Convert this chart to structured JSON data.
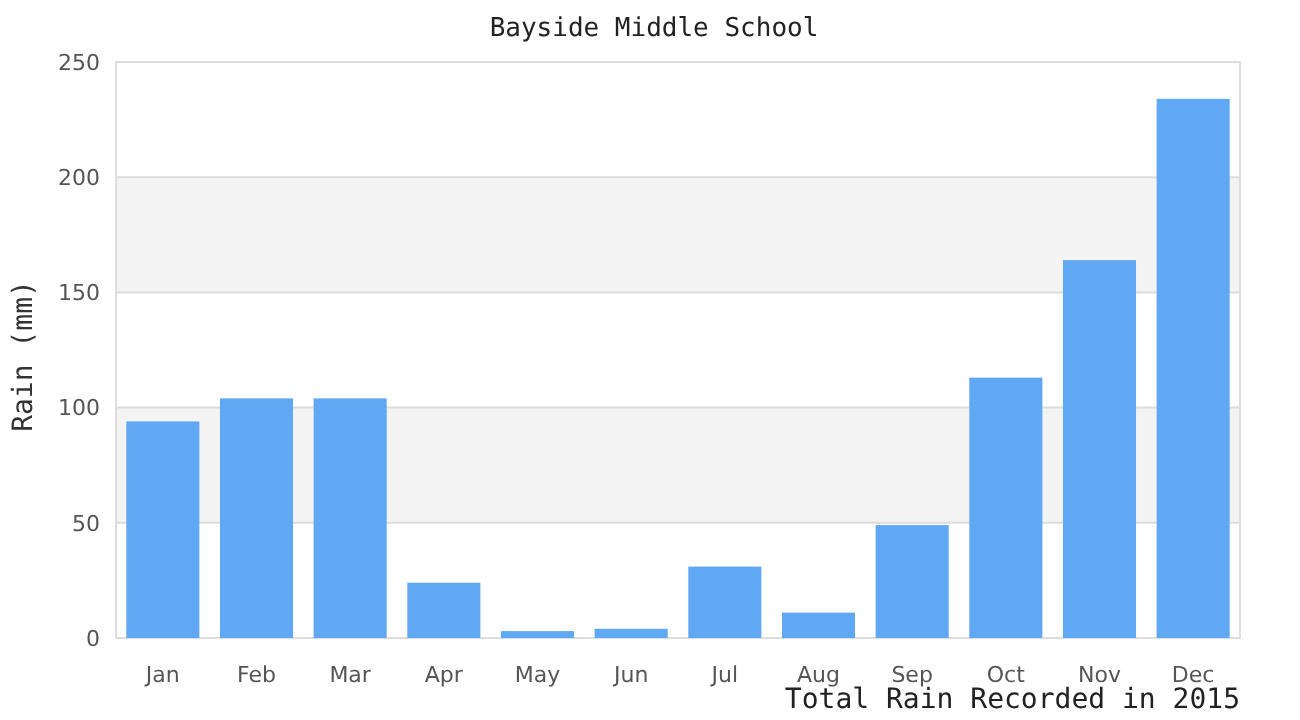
{
  "chart_data": {
    "type": "bar",
    "title": "Bayside Middle School",
    "xlabel": "Total Rain Recorded in 2015",
    "ylabel": "Rain (mm)",
    "categories": [
      "Jan",
      "Feb",
      "Mar",
      "Apr",
      "May",
      "Jun",
      "Jul",
      "Aug",
      "Sep",
      "Oct",
      "Nov",
      "Dec"
    ],
    "values": [
      94,
      104,
      104,
      24,
      3,
      4,
      31,
      11,
      49,
      113,
      164,
      234
    ],
    "color": "#60a8f4",
    "ylim": [
      0,
      250
    ],
    "yticks": [
      0,
      50,
      100,
      150,
      200,
      250
    ],
    "grid": "y"
  }
}
